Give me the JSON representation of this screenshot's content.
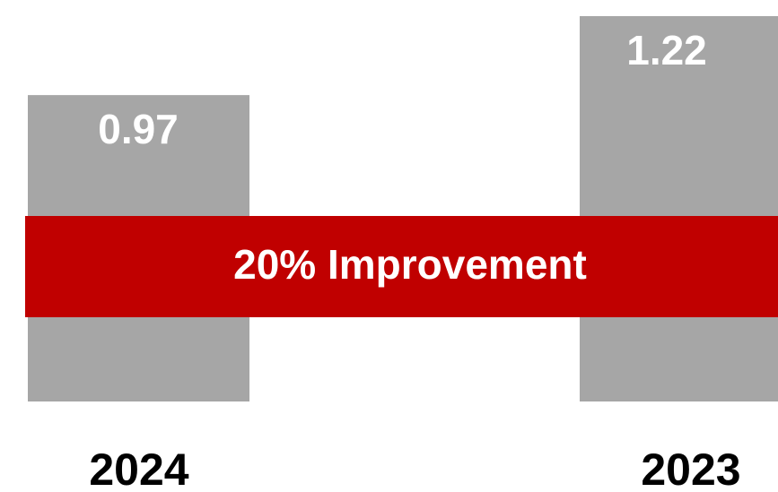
{
  "chart_data": {
    "type": "bar",
    "categories": [
      "2024",
      "2023"
    ],
    "values": [
      0.97,
      1.22
    ],
    "data_labels": [
      "0.97",
      "1.22"
    ],
    "title": "",
    "xlabel": "",
    "ylabel": "",
    "ylim": [
      0,
      1.22
    ],
    "grid": false,
    "bar_color": "#a6a6a6",
    "annotation": {
      "text": "20% Improvement",
      "color": "#c00000"
    }
  }
}
